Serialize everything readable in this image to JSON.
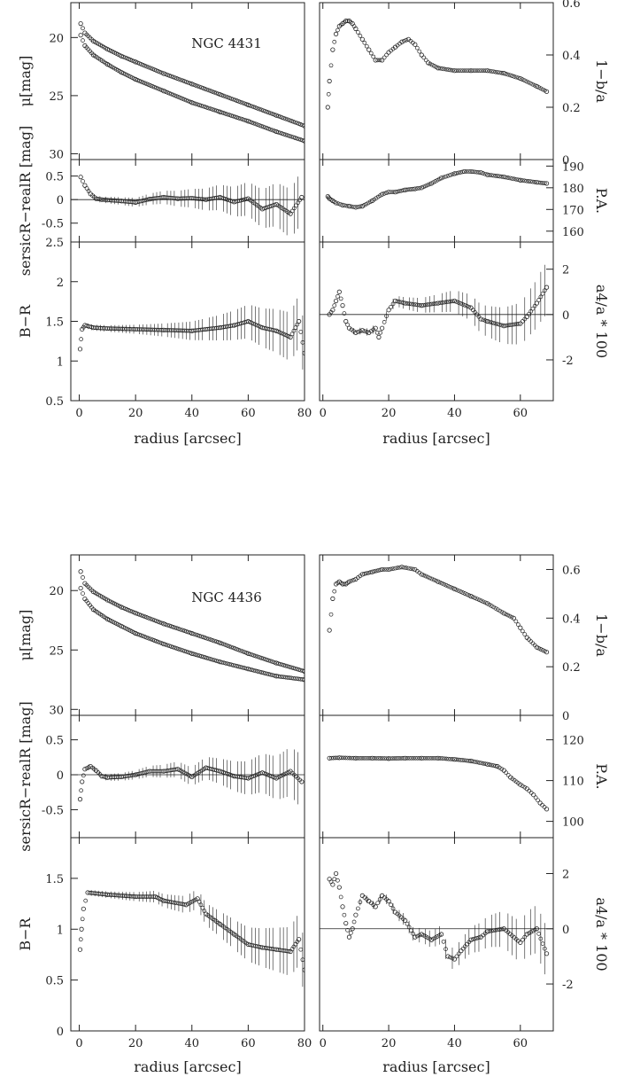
{
  "figure_annotations": [
    "NGC 4431",
    "NGC 4436"
  ],
  "colors": {
    "ink": "#222222",
    "background": "#ffffff"
  },
  "chart_data": [
    {
      "type": "scatter",
      "galaxy": "NGC 4431",
      "annotation": "NGC 4431",
      "panels": {
        "mu": {
          "ylabel": "μ[mag]",
          "ylim": [
            30.5,
            17
          ],
          "yticks": [
            20,
            25,
            30
          ],
          "xlim": [
            -3,
            80
          ],
          "series": [
            {
              "x": [
                0.5,
                2,
                5,
                10,
                15,
                20,
                30,
                40,
                50,
                60,
                70,
                80
              ],
              "y": [
                18.8,
                19.6,
                20.3,
                21.0,
                21.6,
                22.1,
                23.1,
                24.0,
                24.9,
                25.8,
                26.7,
                27.6
              ]
            },
            {
              "x": [
                0.5,
                2,
                5,
                10,
                15,
                20,
                30,
                40,
                50,
                60,
                70,
                80
              ],
              "y": [
                19.8,
                20.7,
                21.5,
                22.3,
                23.0,
                23.6,
                24.6,
                25.6,
                26.4,
                27.2,
                28.1,
                28.9
              ]
            }
          ]
        },
        "residual": {
          "ylabel": "sersicR−realR [mag]",
          "ylim": [
            -0.9,
            0.85
          ],
          "yticks": [
            -0.5,
            0,
            0.5
          ],
          "xlim": [
            -3,
            80
          ],
          "reference_line": 0,
          "x": [
            0.5,
            2,
            4,
            6,
            8,
            10,
            15,
            20,
            25,
            30,
            35,
            40,
            45,
            50,
            55,
            60,
            65,
            70,
            75,
            79
          ],
          "y": [
            0.48,
            0.3,
            0.12,
            0.02,
            0.0,
            -0.01,
            -0.03,
            -0.06,
            0.01,
            0.05,
            0.02,
            0.03,
            0.0,
            0.05,
            -0.05,
            0.02,
            -0.2,
            -0.1,
            -0.3,
            0.05
          ]
        },
        "color": {
          "ylabel": "B−R",
          "ylim": [
            0.5,
            2.5
          ],
          "yticks": [
            0.5,
            1,
            1.5,
            2,
            2.5
          ],
          "xlim": [
            -3,
            80
          ],
          "xlabel": "radius [arcsec]",
          "xticks": [
            0,
            20,
            40,
            60,
            80
          ],
          "x": [
            0.3,
            1,
            2,
            5,
            10,
            20,
            30,
            40,
            45,
            50,
            55,
            60,
            65,
            70,
            75,
            78,
            80
          ],
          "y": [
            1.15,
            1.4,
            1.45,
            1.42,
            1.41,
            1.4,
            1.39,
            1.38,
            1.4,
            1.42,
            1.45,
            1.5,
            1.42,
            1.38,
            1.3,
            1.5,
            1.1
          ]
        },
        "ellipticity": {
          "ylabel": "1−b/a",
          "ylim": [
            0,
            0.6
          ],
          "yticks": [
            0,
            0.2,
            0.4,
            0.6
          ],
          "xlim": [
            -1,
            70
          ],
          "x": [
            1.5,
            2,
            3,
            4,
            5,
            6,
            7,
            8,
            9,
            10,
            12,
            14,
            16,
            18,
            20,
            22,
            24,
            26,
            28,
            30,
            32,
            35,
            40,
            45,
            50,
            55,
            60,
            65,
            68
          ],
          "y": [
            0.2,
            0.3,
            0.42,
            0.48,
            0.51,
            0.52,
            0.53,
            0.53,
            0.52,
            0.5,
            0.46,
            0.42,
            0.38,
            0.38,
            0.41,
            0.43,
            0.45,
            0.46,
            0.44,
            0.4,
            0.37,
            0.35,
            0.34,
            0.34,
            0.34,
            0.33,
            0.31,
            0.28,
            0.26
          ]
        },
        "position_angle": {
          "ylabel": "P.A.",
          "ylim": [
            155,
            193
          ],
          "yticks": [
            160,
            170,
            180,
            190
          ],
          "xlim": [
            -1,
            70
          ],
          "x": [
            1.5,
            2,
            3,
            4,
            6,
            8,
            10,
            12,
            15,
            18,
            20,
            22,
            25,
            28,
            30,
            33,
            36,
            40,
            43,
            45,
            48,
            50,
            55,
            60,
            65,
            68
          ],
          "y": [
            176,
            175,
            174,
            173,
            172,
            171.5,
            171,
            171.5,
            174,
            177,
            178,
            178,
            179,
            179.5,
            180,
            182,
            184.5,
            186.5,
            187.5,
            187.5,
            187,
            186,
            185,
            183.5,
            182.5,
            182
          ]
        },
        "a4": {
          "ylabel": "a4/a * 100",
          "ylim": [
            -3.8,
            3.2
          ],
          "yticks": [
            -2,
            0,
            2
          ],
          "xlim": [
            -1,
            70
          ],
          "xlabel": "radius [arcsec]",
          "xticks": [
            0,
            20,
            40,
            60
          ],
          "reference_line": 0,
          "x": [
            2,
            3,
            4,
            5,
            6,
            7,
            8,
            10,
            12,
            14,
            16,
            17,
            18,
            20,
            22,
            25,
            30,
            35,
            40,
            45,
            48,
            50,
            55,
            60,
            62,
            65,
            68
          ],
          "y": [
            0.0,
            0.2,
            0.6,
            1.0,
            0.4,
            -0.3,
            -0.6,
            -0.8,
            -0.7,
            -0.8,
            -0.6,
            -1.0,
            -0.6,
            0.2,
            0.6,
            0.5,
            0.4,
            0.5,
            0.6,
            0.3,
            -0.2,
            -0.3,
            -0.5,
            -0.4,
            -0.1,
            0.5,
            1.2
          ]
        }
      }
    },
    {
      "type": "scatter",
      "galaxy": "NGC 4436",
      "annotation": "NGC 4436",
      "panels": {
        "mu": {
          "ylabel": "μ[mag]",
          "ylim": [
            30.5,
            17
          ],
          "yticks": [
            20,
            25,
            30
          ],
          "xlim": [
            -3,
            80
          ],
          "series": [
            {
              "x": [
                0.5,
                2,
                5,
                10,
                15,
                20,
                30,
                40,
                50,
                60,
                70,
                80
              ],
              "y": [
                18.4,
                19.4,
                20.1,
                20.8,
                21.4,
                21.9,
                22.8,
                23.6,
                24.4,
                25.3,
                26.1,
                26.8
              ]
            },
            {
              "x": [
                0.5,
                2,
                5,
                10,
                15,
                20,
                30,
                40,
                50,
                60,
                70,
                80
              ],
              "y": [
                19.8,
                20.7,
                21.6,
                22.4,
                23.0,
                23.6,
                24.5,
                25.3,
                26.0,
                26.6,
                27.2,
                27.5
              ]
            }
          ]
        },
        "residual": {
          "ylabel": "sersicR−realR [mag]",
          "ylim": [
            -0.9,
            0.85
          ],
          "yticks": [
            -0.5,
            0,
            0.5
          ],
          "xlim": [
            -3,
            80
          ],
          "reference_line": 0,
          "x": [
            0.3,
            1,
            2,
            4,
            6,
            8,
            10,
            15,
            20,
            25,
            30,
            35,
            40,
            45,
            50,
            55,
            60,
            65,
            70,
            75,
            79
          ],
          "y": [
            -0.35,
            -0.1,
            0.08,
            0.12,
            0.06,
            -0.02,
            -0.04,
            -0.03,
            0.0,
            0.05,
            0.05,
            0.08,
            -0.03,
            0.1,
            0.05,
            -0.02,
            -0.05,
            0.03,
            -0.05,
            0.05,
            -0.1
          ]
        },
        "color": {
          "ylabel": "B−R",
          "ylim": [
            0,
            1.9
          ],
          "yticks": [
            0,
            0.5,
            1,
            1.5
          ],
          "xlim": [
            -3,
            80
          ],
          "xlabel": "radius [arcsec]",
          "xticks": [
            0,
            20,
            40,
            60,
            80
          ],
          "x": [
            0.3,
            0.8,
            1.5,
            3,
            10,
            20,
            27,
            30,
            38,
            42,
            45,
            50,
            55,
            60,
            65,
            70,
            75,
            78,
            80
          ],
          "y": [
            0.8,
            1.0,
            1.2,
            1.36,
            1.34,
            1.32,
            1.32,
            1.28,
            1.24,
            1.3,
            1.15,
            1.05,
            0.95,
            0.85,
            0.82,
            0.8,
            0.78,
            0.9,
            0.6
          ]
        },
        "ellipticity": {
          "ylabel": "1−b/a",
          "ylim": [
            0,
            0.66
          ],
          "yticks": [
            0,
            0.2,
            0.4,
            0.6
          ],
          "xlim": [
            -1,
            70
          ],
          "x": [
            2,
            3,
            4,
            5,
            6,
            7,
            8,
            10,
            12,
            15,
            18,
            20,
            24,
            28,
            30,
            35,
            40,
            45,
            50,
            55,
            58,
            60,
            62,
            65,
            68
          ],
          "y": [
            0.35,
            0.48,
            0.54,
            0.55,
            0.54,
            0.54,
            0.55,
            0.56,
            0.58,
            0.59,
            0.6,
            0.6,
            0.61,
            0.6,
            0.58,
            0.55,
            0.52,
            0.49,
            0.46,
            0.42,
            0.4,
            0.36,
            0.32,
            0.28,
            0.26
          ]
        },
        "position_angle": {
          "ylabel": "P.A.",
          "ylim": [
            96,
            126
          ],
          "yticks": [
            100,
            110,
            120
          ],
          "xlim": [
            -1,
            70
          ],
          "x": [
            2,
            5,
            10,
            15,
            20,
            25,
            30,
            35,
            40,
            45,
            50,
            53,
            55,
            57,
            60,
            62,
            64,
            66,
            68
          ],
          "y": [
            115.5,
            115.6,
            115.5,
            115.5,
            115.4,
            115.5,
            115.5,
            115.5,
            115.2,
            114.8,
            114.0,
            113.5,
            112.5,
            110.8,
            109,
            108,
            106.5,
            104.5,
            103
          ]
        },
        "a4": {
          "ylabel": "a4/a * 100",
          "ylim": [
            -3.7,
            3.3
          ],
          "yticks": [
            -2,
            0,
            2
          ],
          "xlim": [
            -1,
            70
          ],
          "xlabel": "radius [arcsec]",
          "xticks": [
            0,
            20,
            40,
            60
          ],
          "reference_line": 0,
          "x": [
            2,
            3,
            4,
            5,
            6,
            7,
            8,
            9,
            10,
            12,
            14,
            16,
            18,
            20,
            22,
            25,
            28,
            30,
            33,
            36,
            38,
            40,
            42,
            45,
            48,
            50,
            55,
            60,
            62,
            65,
            68
          ],
          "y": [
            1.8,
            1.6,
            2.0,
            1.5,
            0.8,
            0.2,
            -0.3,
            0.0,
            0.5,
            1.2,
            1.0,
            0.8,
            1.2,
            1.0,
            0.6,
            0.3,
            -0.3,
            -0.2,
            -0.4,
            -0.2,
            -1.0,
            -1.1,
            -0.8,
            -0.4,
            -0.3,
            -0.1,
            0.0,
            -0.5,
            -0.2,
            0.0,
            -0.9
          ]
        }
      }
    }
  ]
}
